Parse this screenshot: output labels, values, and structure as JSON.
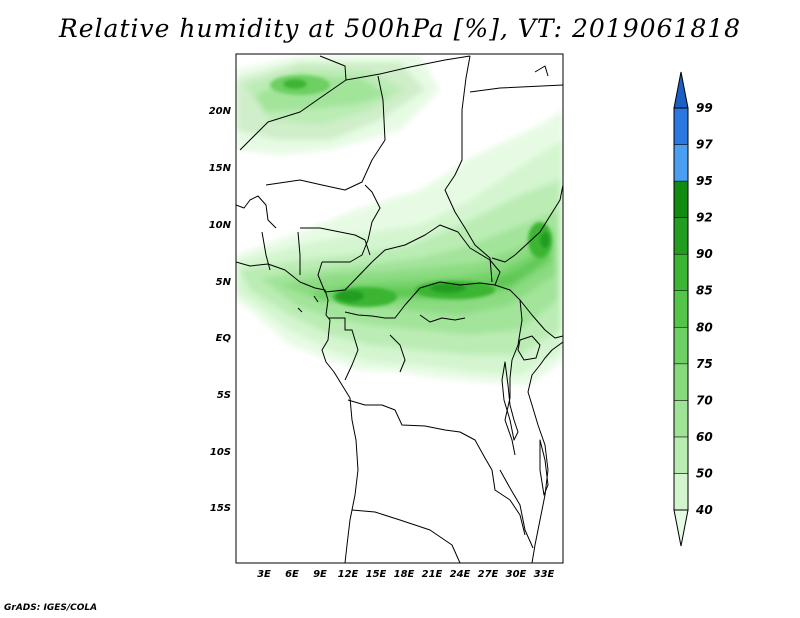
{
  "title": "Relative humidity at 500hPa [%], VT: 2019061818",
  "credit": "GrADS: IGES/COLA",
  "map": {
    "variable": "Relative humidity",
    "level": "500hPa",
    "unit": "%",
    "valid_time": "2019061818",
    "lon_range": [
      0,
      35
    ],
    "lat_range": [
      -20,
      24
    ],
    "lat_labels": [
      {
        "lat": 20,
        "text": "20N"
      },
      {
        "lat": 15,
        "text": "15N"
      },
      {
        "lat": 10,
        "text": "10N"
      },
      {
        "lat": 5,
        "text": "5N"
      },
      {
        "lat": 0,
        "text": "EQ"
      },
      {
        "lat": -5,
        "text": "5S"
      },
      {
        "lat": -10,
        "text": "10S"
      },
      {
        "lat": -15,
        "text": "15S"
      }
    ],
    "lon_labels": [
      {
        "lon": 3,
        "text": "3E"
      },
      {
        "lon": 6,
        "text": "6E"
      },
      {
        "lon": 9,
        "text": "9E"
      },
      {
        "lon": 12,
        "text": "12E"
      },
      {
        "lon": 15,
        "text": "15E"
      },
      {
        "lon": 18,
        "text": "18E"
      },
      {
        "lon": 21,
        "text": "21E"
      },
      {
        "lon": 24,
        "text": "24E"
      },
      {
        "lon": 27,
        "text": "27E"
      },
      {
        "lon": 30,
        "text": "30E"
      },
      {
        "lon": 33,
        "text": "33E"
      }
    ]
  },
  "colorbar": {
    "levels": [
      "40",
      "50",
      "60",
      "70",
      "75",
      "80",
      "85",
      "90",
      "92",
      "95",
      "97",
      "99"
    ],
    "colors": [
      "#e6fbe3",
      "#d2f5cd",
      "#b8ecb1",
      "#9fe396",
      "#86da7c",
      "#6dd062",
      "#54c549",
      "#3bb533",
      "#239d20",
      "#128c10",
      "#4a9ff0",
      "#2a78e0",
      "#1a5fc6"
    ]
  }
}
